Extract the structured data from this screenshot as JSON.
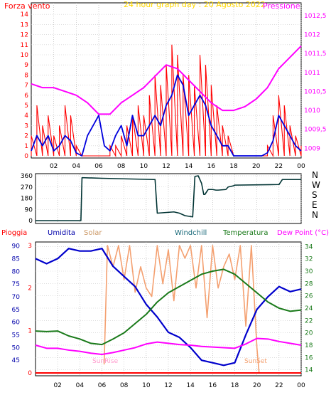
{
  "colors": {
    "wind": "#ff0000",
    "gust_dark": "#0000dd",
    "pressure": "#ff00ff",
    "dir": "#003333",
    "humidity": "#0000cc",
    "solar": "#f4a070",
    "temperature": "#1a7a1a",
    "dewpoint": "#ff00ff",
    "rain": "#ff0000",
    "title": "#ffd800",
    "frame": "#000000"
  },
  "chart_data": [
    {
      "type": "line",
      "title": "24 hour graph day : 20 Agosto 2022",
      "left_axis_label": "Forza vento",
      "right_axis_label": "Pressione",
      "x_ticks": [
        "02",
        "04",
        "06",
        "08",
        "10",
        "12",
        "14",
        "16",
        "18",
        "20",
        "22",
        "00"
      ],
      "y_left": {
        "range": [
          0,
          15
        ],
        "ticks": [
          "0",
          "1",
          "2",
          "3",
          "4",
          "5",
          "6",
          "7",
          "8",
          "9",
          "10",
          "11",
          "12",
          "13",
          "14"
        ]
      },
      "y_right": {
        "range": [
          1008.8,
          1012.8
        ],
        "ticks": [
          "1009",
          "1009,5",
          "1010",
          "1010,5",
          "1011",
          "1011,5",
          "1012",
          "1012,5"
        ]
      },
      "x_range": [
        0,
        24
      ],
      "series": [
        {
          "key": "wind",
          "x": [
            0,
            0.5,
            1,
            1.5,
            2,
            2.5,
            3,
            3.5,
            4,
            4.5,
            5,
            5.5,
            6,
            6.5,
            7,
            7.5,
            8,
            8.5,
            9,
            9.5,
            10,
            10.5,
            11,
            11.5,
            12,
            12.5,
            13,
            13.5,
            14,
            14.5,
            15,
            15.5,
            16,
            16.5,
            17,
            17.5,
            18,
            18.5,
            19,
            19.5,
            20,
            20.5,
            21,
            21.5,
            22,
            22.5,
            23,
            23.5,
            24
          ],
          "values": [
            2,
            5,
            3,
            4,
            2,
            3,
            5,
            4,
            1,
            0,
            0,
            0,
            0,
            0,
            1,
            1,
            2,
            3,
            4,
            5,
            4,
            6,
            8,
            7,
            9,
            11,
            10,
            8,
            8,
            7,
            10,
            9,
            7,
            5,
            3,
            2,
            0,
            0,
            0,
            0,
            0,
            0,
            1,
            4,
            6,
            5,
            3,
            2,
            1
          ]
        },
        {
          "key": "gust",
          "x": [
            0,
            0.5,
            1,
            1.5,
            2,
            2.5,
            3,
            3.5,
            4,
            4.5,
            5,
            5.5,
            6,
            6.5,
            7,
            7.5,
            8,
            8.5,
            9,
            9.5,
            10,
            10.5,
            11,
            11.5,
            12,
            12.5,
            13,
            13.5,
            14,
            14.5,
            15,
            15.5,
            16,
            16.5,
            17,
            17.5,
            18,
            18.5,
            19,
            19.5,
            20,
            20.5,
            21,
            21.5,
            22,
            22.5,
            23,
            23.5,
            24
          ],
          "values": [
            0.5,
            2,
            1,
            2,
            0.5,
            1,
            2,
            1.5,
            0.3,
            0,
            2,
            3,
            4,
            1,
            0.5,
            2,
            3,
            1,
            4,
            2,
            2,
            3,
            4,
            3,
            5,
            6,
            8,
            7,
            4,
            5,
            6,
            5,
            3,
            2,
            1,
            1,
            0,
            0,
            0,
            0,
            0,
            0,
            0.3,
            1.5,
            4,
            3,
            2,
            1,
            0.5
          ]
        },
        {
          "key": "pressure",
          "x": [
            0,
            1,
            2,
            3,
            4,
            5,
            6,
            7,
            8,
            9,
            10,
            11,
            12,
            13,
            14,
            15,
            16,
            17,
            18,
            19,
            20,
            21,
            22,
            23,
            24
          ],
          "values": [
            1010.7,
            1010.6,
            1010.6,
            1010.5,
            1010.4,
            1010.2,
            1009.9,
            1009.9,
            1010.2,
            1010.4,
            1010.6,
            1010.9,
            1011.2,
            1011.1,
            1010.8,
            1010.5,
            1010.2,
            1010.0,
            1010.0,
            1010.1,
            1010.3,
            1010.6,
            1011.1,
            1011.4,
            1011.7
          ]
        }
      ]
    },
    {
      "type": "line",
      "right_axis_label": [
        "N",
        "W",
        "S",
        "E",
        "N"
      ],
      "y_left": {
        "range": [
          0,
          360
        ],
        "ticks": [
          "0",
          "90",
          "180",
          "270",
          "360"
        ]
      },
      "series": [
        {
          "key": "direction",
          "x": [
            0,
            0.3,
            4.1,
            4.2,
            6,
            10.7,
            10.8,
            11,
            12.5,
            13,
            13.5,
            14.2,
            14.4,
            14.7,
            15,
            15.2,
            15.3,
            15.6,
            16,
            16.3,
            16.5,
            17.2,
            17.4,
            17.9,
            18,
            22,
            22.3,
            24
          ],
          "values": [
            0,
            0,
            0,
            345,
            340,
            330,
            330,
            60,
            70,
            60,
            40,
            30,
            355,
            360,
            300,
            210,
            210,
            250,
            250,
            245,
            245,
            250,
            270,
            280,
            285,
            290,
            330,
            330
          ]
        }
      ]
    },
    {
      "type": "line",
      "legend": [
        "Pioggia",
        "Umidita",
        "Solar",
        "Windchill",
        "Temperatura",
        "Dew Point (°C)"
      ],
      "x_ticks": [
        "02",
        "04",
        "06",
        "08",
        "10",
        "12",
        "14",
        "16",
        "18",
        "20",
        "22",
        "00"
      ],
      "y_left_pioggia": {
        "range": [
          0,
          3
        ],
        "ticks": [
          "0",
          "1",
          "2",
          "3"
        ]
      },
      "y_left_umidita": {
        "range": [
          40,
          91
        ],
        "ticks": [
          "45",
          "50",
          "55",
          "60",
          "65",
          "70",
          "75",
          "80",
          "85",
          "90"
        ]
      },
      "y_right": {
        "range": [
          13.5,
          34.5
        ],
        "ticks": [
          "14",
          "16",
          "18",
          "20",
          "22",
          "24",
          "26",
          "28",
          "30",
          "32",
          "34"
        ]
      },
      "annotations": [
        "SunRise",
        "SunSet"
      ],
      "series": [
        {
          "key": "humidity",
          "x": [
            0,
            1,
            2,
            3,
            4,
            5,
            6,
            7,
            8,
            9,
            10,
            11,
            12,
            13,
            14,
            15,
            16,
            17,
            18,
            19,
            20,
            21,
            22,
            23,
            24
          ],
          "values": [
            85,
            83,
            85,
            89,
            88,
            88,
            89,
            82,
            78,
            74,
            67,
            62,
            56,
            54,
            50,
            45,
            44,
            43,
            44,
            55,
            65,
            70,
            74,
            72,
            73
          ]
        },
        {
          "key": "temperature",
          "x": [
            0,
            1,
            2,
            3,
            4,
            5,
            6,
            7,
            8,
            9,
            10,
            11,
            12,
            13,
            14,
            15,
            16,
            17,
            18,
            19,
            20,
            21,
            22,
            23,
            24
          ],
          "values": [
            20.3,
            20.2,
            20.3,
            19.5,
            19,
            18.3,
            18.1,
            19,
            20,
            21.5,
            23,
            25,
            26.5,
            27.5,
            28.5,
            29.5,
            30,
            30.3,
            29.5,
            28,
            26.5,
            25,
            24,
            23.5,
            23.7
          ]
        },
        {
          "key": "dewpoint",
          "x": [
            0,
            1,
            2,
            3,
            4,
            5,
            6,
            7,
            8,
            9,
            10,
            11,
            12,
            13,
            14,
            15,
            16,
            17,
            18,
            19,
            20,
            21,
            22,
            23,
            24
          ],
          "values": [
            18,
            17.5,
            17.5,
            17.2,
            17,
            16.7,
            16.5,
            16.8,
            17.2,
            17.6,
            18.2,
            18.5,
            18.3,
            18.1,
            18,
            17.8,
            17.7,
            17.6,
            17.5,
            18.2,
            19.1,
            19,
            18.6,
            18.3,
            18
          ]
        },
        {
          "key": "solar",
          "x": [
            6.2,
            6.5,
            7,
            7.5,
            8,
            8.5,
            9,
            9.5,
            10,
            10.5,
            11,
            11.5,
            12,
            12.5,
            13,
            13.5,
            14,
            14.5,
            15,
            15.5,
            16,
            16.5,
            17,
            17.5,
            18,
            18.5,
            19,
            19.5,
            20,
            20.2
          ],
          "values": [
            0.2,
            3,
            2.5,
            3,
            2.2,
            3,
            1.9,
            2.5,
            2,
            1.8,
            3,
            2.1,
            2.9,
            1.7,
            3,
            2.7,
            3,
            2,
            3,
            1.3,
            3,
            2,
            2.5,
            2.8,
            2.2,
            3,
            1.1,
            3,
            0.6,
            0
          ]
        },
        {
          "key": "rain",
          "x": [
            0,
            24
          ],
          "values": [
            0,
            0
          ]
        }
      ]
    }
  ]
}
